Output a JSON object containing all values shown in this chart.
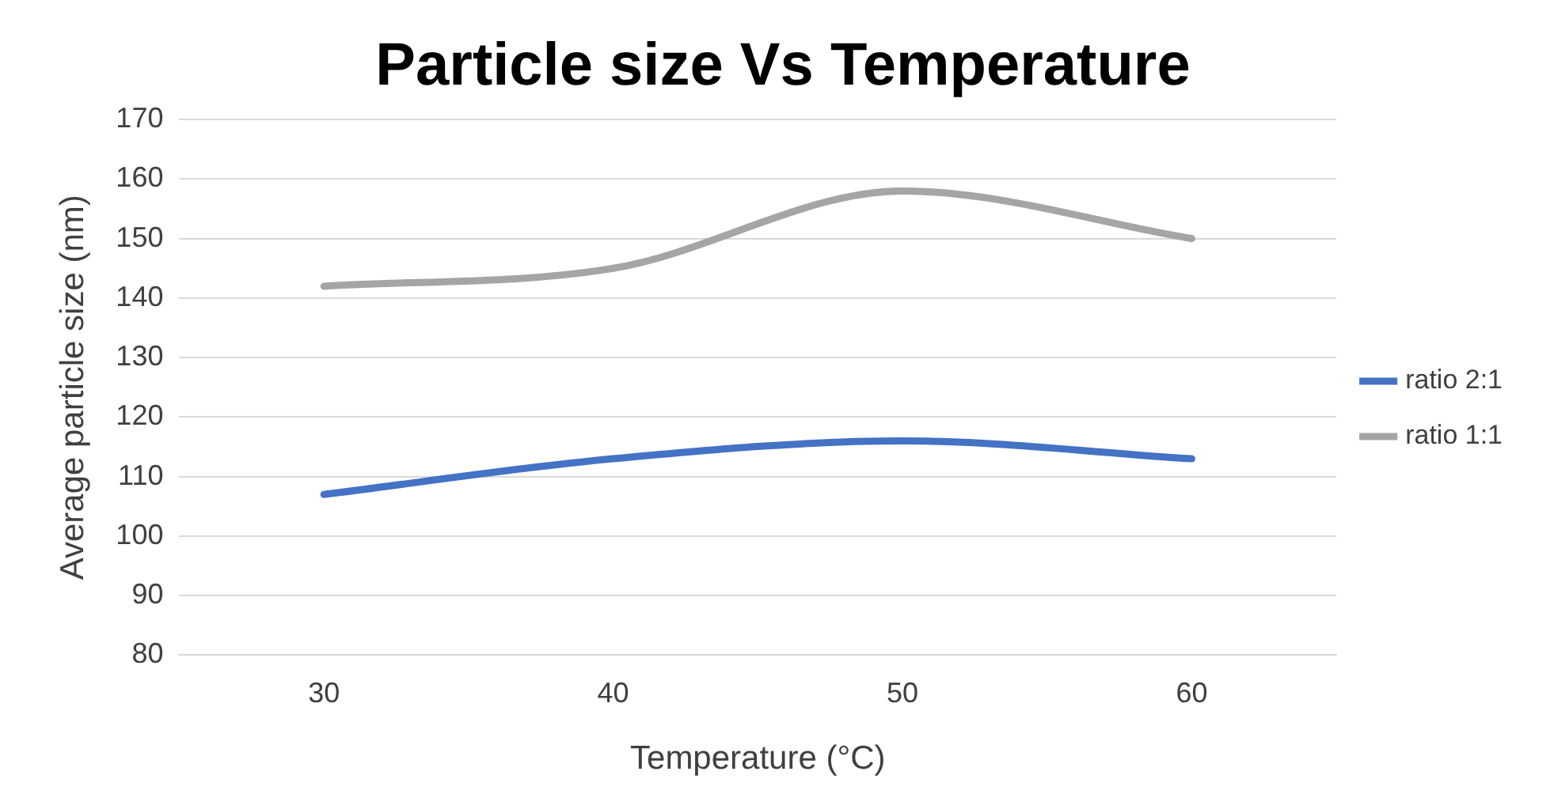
{
  "chart_data": {
    "type": "line",
    "title": "Particle size Vs Temperature",
    "xlabel": "Temperature (°C)",
    "ylabel": "Average particle size (nm)",
    "categories": [
      "30",
      "40",
      "50",
      "60"
    ],
    "series": [
      {
        "name": "ratio 2:1",
        "color": "#4472c4",
        "values": [
          107,
          113,
          116,
          113
        ]
      },
      {
        "name": "ratio 1:1",
        "color": "#a5a5a5",
        "values": [
          142,
          145,
          158,
          150
        ]
      }
    ],
    "ylim": [
      80,
      170
    ],
    "yticks": [
      80,
      90,
      100,
      110,
      120,
      130,
      140,
      150,
      160,
      170
    ],
    "grid": "y",
    "legend": "right",
    "marker": "none",
    "line_style": "solid"
  }
}
